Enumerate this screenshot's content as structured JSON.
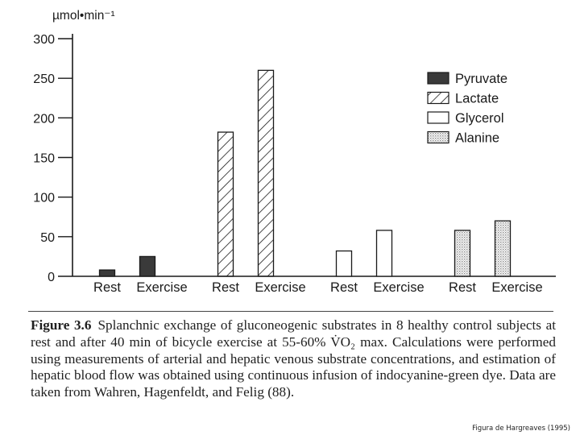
{
  "chart_data": {
    "type": "bar",
    "unit_label": "µmol•min⁻¹",
    "ylim": [
      0,
      300
    ],
    "yticks": [
      0,
      50,
      100,
      150,
      200,
      250,
      300
    ],
    "groups": [
      {
        "series": "Pyruvate",
        "pattern": "solid-dark",
        "bars": [
          {
            "category": "Rest",
            "value": 8
          },
          {
            "category": "Exercise",
            "value": 25
          }
        ]
      },
      {
        "series": "Lactate",
        "pattern": "diagonal-hatch",
        "bars": [
          {
            "category": "Rest",
            "value": 182
          },
          {
            "category": "Exercise",
            "value": 260
          }
        ]
      },
      {
        "series": "Glycerol",
        "pattern": "open",
        "bars": [
          {
            "category": "Rest",
            "value": 32
          },
          {
            "category": "Exercise",
            "value": 58
          }
        ]
      },
      {
        "series": "Alanine",
        "pattern": "stippled",
        "bars": [
          {
            "category": "Rest",
            "value": 58
          },
          {
            "category": "Exercise",
            "value": 70
          }
        ]
      }
    ],
    "legend": {
      "position": "top-right",
      "entries": [
        "Pyruvate",
        "Lactate",
        "Glycerol",
        "Alanine"
      ]
    },
    "grid": false
  },
  "caption": {
    "label": "Figure 3.6",
    "text": "Splanchnic exchange of gluconeogenic substrates in 8 healthy control subjects at rest and after 40 min of bicycle exercise at 55-60% V̇O₂ max. Calculations were performed using measurements of arterial and hepatic venous substrate concentrations, and estimation of hepatic blood flow was obtained using continuous infusion of indocyanine-green dye. Data are taken from Wahren, Hagenfeldt, and Felig (88)."
  },
  "credit": "Figura de Hargreaves (1995)",
  "colors": {
    "ink": "#1a1a1a",
    "pyruvate_fill": "#3a3a3a",
    "stipple_fill": "#c9c9c9"
  }
}
